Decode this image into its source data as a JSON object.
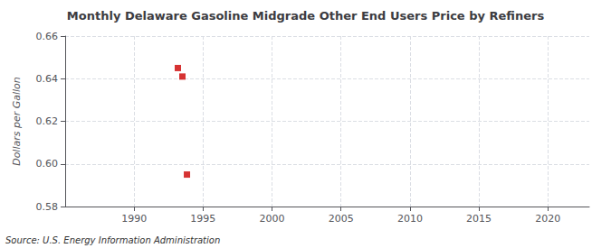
{
  "chart_data": {
    "type": "scatter",
    "title": "Monthly Delaware Gasoline Midgrade Other End Users Price by Refiners",
    "ylabel": "Dollars per Gallon",
    "annotation": "Source: U.S. Energy Information Administration",
    "x": [
      1993.17,
      1993.5,
      1993.83
    ],
    "values": [
      0.645,
      0.641,
      0.595
    ],
    "color": "#cc0000",
    "marker": "square",
    "xlim": [
      1985,
      2023
    ],
    "ylim": [
      0.58,
      0.66
    ],
    "xticks": [
      1990,
      1995,
      2000,
      2005,
      2010,
      2015,
      2020
    ],
    "yticks": [
      0.58,
      {
        "value": 0.6,
        "label": "0.60"
      },
      0.62,
      0.64,
      0.66
    ],
    "grid": true
  }
}
